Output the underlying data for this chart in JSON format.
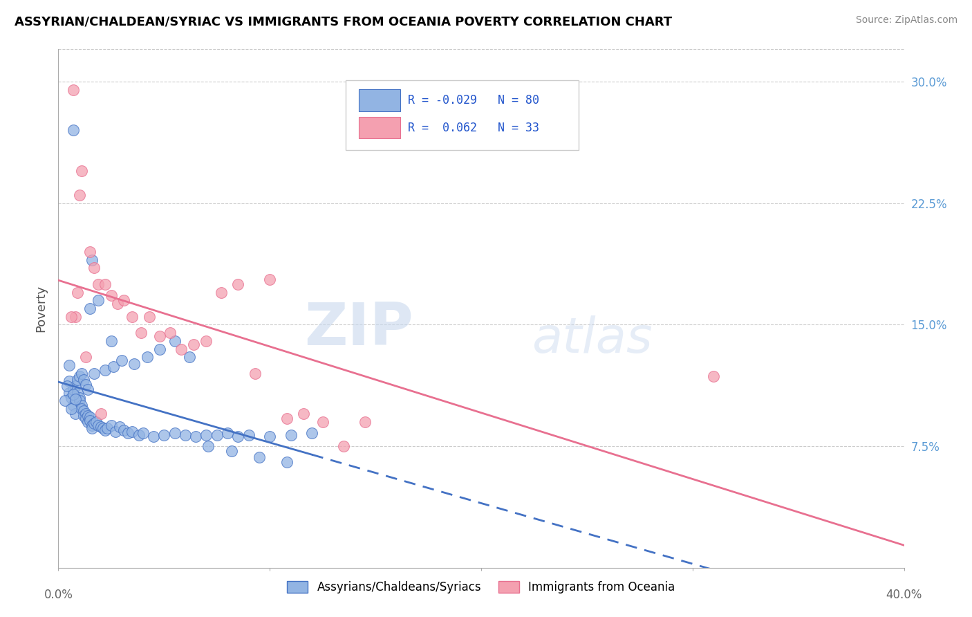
{
  "title": "ASSYRIAN/CHALDEAN/SYRIAC VS IMMIGRANTS FROM OCEANIA POVERTY CORRELATION CHART",
  "source": "Source: ZipAtlas.com",
  "ylabel": "Poverty",
  "yticks": [
    0.075,
    0.15,
    0.225,
    0.3
  ],
  "ytick_labels": [
    "7.5%",
    "15.0%",
    "22.5%",
    "30.0%"
  ],
  "xmin": 0.0,
  "xmax": 0.4,
  "ymin": 0.0,
  "ymax": 0.32,
  "color_blue": "#92b4e3",
  "color_pink": "#f4a0b0",
  "line_blue": "#4472c4",
  "line_pink": "#e87090",
  "watermark_zip": "ZIP",
  "watermark_atlas": "atlas",
  "legend_label1": "Assyrians/Chaldeans/Syriacs",
  "legend_label2": "Immigrants from Oceania",
  "legend_r1": "R = -0.029",
  "legend_n1": "N = 80",
  "legend_r2": "R =  0.062",
  "legend_n2": "N = 33",
  "blue_x": [
    0.005,
    0.005,
    0.006,
    0.007,
    0.007,
    0.008,
    0.008,
    0.009,
    0.01,
    0.01,
    0.011,
    0.011,
    0.012,
    0.012,
    0.013,
    0.013,
    0.014,
    0.014,
    0.015,
    0.015,
    0.016,
    0.016,
    0.017,
    0.018,
    0.019,
    0.02,
    0.021,
    0.022,
    0.023,
    0.025,
    0.027,
    0.029,
    0.031,
    0.033,
    0.035,
    0.038,
    0.04,
    0.045,
    0.05,
    0.055,
    0.06,
    0.065,
    0.07,
    0.075,
    0.08,
    0.085,
    0.09,
    0.1,
    0.11,
    0.12,
    0.003,
    0.004,
    0.005,
    0.006,
    0.007,
    0.008,
    0.009,
    0.01,
    0.011,
    0.012,
    0.013,
    0.014,
    0.015,
    0.017,
    0.019,
    0.022,
    0.026,
    0.03,
    0.036,
    0.042,
    0.048,
    0.055,
    0.062,
    0.071,
    0.082,
    0.095,
    0.108,
    0.025,
    0.007,
    0.016
  ],
  "blue_y": [
    0.108,
    0.115,
    0.105,
    0.1,
    0.11,
    0.095,
    0.112,
    0.108,
    0.105,
    0.103,
    0.1,
    0.098,
    0.097,
    0.094,
    0.095,
    0.092,
    0.09,
    0.094,
    0.093,
    0.091,
    0.088,
    0.086,
    0.089,
    0.09,
    0.088,
    0.087,
    0.086,
    0.085,
    0.086,
    0.088,
    0.084,
    0.087,
    0.085,
    0.083,
    0.084,
    0.082,
    0.083,
    0.081,
    0.082,
    0.083,
    0.082,
    0.081,
    0.082,
    0.082,
    0.083,
    0.081,
    0.082,
    0.081,
    0.082,
    0.083,
    0.103,
    0.112,
    0.125,
    0.098,
    0.107,
    0.104,
    0.116,
    0.118,
    0.12,
    0.116,
    0.113,
    0.11,
    0.16,
    0.12,
    0.165,
    0.122,
    0.124,
    0.128,
    0.126,
    0.13,
    0.135,
    0.14,
    0.13,
    0.075,
    0.072,
    0.068,
    0.065,
    0.14,
    0.27,
    0.19
  ],
  "pink_x": [
    0.007,
    0.008,
    0.009,
    0.01,
    0.011,
    0.013,
    0.015,
    0.017,
    0.019,
    0.022,
    0.025,
    0.028,
    0.031,
    0.035,
    0.039,
    0.043,
    0.048,
    0.053,
    0.058,
    0.064,
    0.07,
    0.077,
    0.085,
    0.093,
    0.1,
    0.108,
    0.116,
    0.125,
    0.135,
    0.145,
    0.31,
    0.006,
    0.02
  ],
  "pink_y": [
    0.295,
    0.155,
    0.17,
    0.23,
    0.245,
    0.13,
    0.195,
    0.185,
    0.175,
    0.175,
    0.168,
    0.163,
    0.165,
    0.155,
    0.145,
    0.155,
    0.143,
    0.145,
    0.135,
    0.138,
    0.14,
    0.17,
    0.175,
    0.12,
    0.178,
    0.092,
    0.095,
    0.09,
    0.075,
    0.09,
    0.118,
    0.155,
    0.095
  ]
}
